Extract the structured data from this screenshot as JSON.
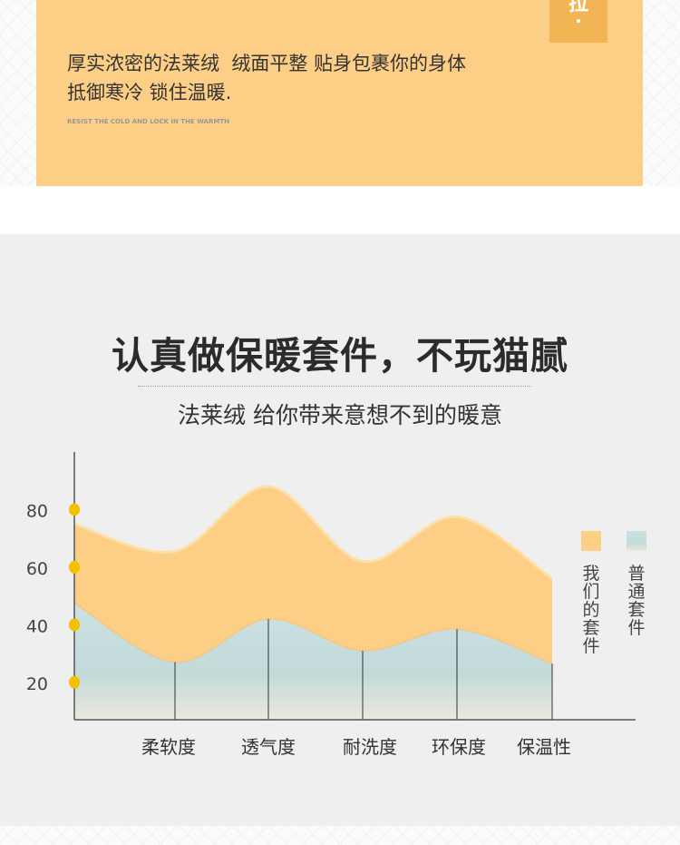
{
  "hero": {
    "badge_char": "拉",
    "description_line1": "厚实浓密的法莱绒  绒面平整 贴身包裹你的身体",
    "description_line2": "抵御寒冷 锁住温暖.",
    "english_tagline": "RESIST THE COLD AND LOCK IN THE WARMTH"
  },
  "section": {
    "title": "认真做保暖套件，不玩猫腻",
    "subtitle": "法莱绒 给你带来意想不到的暖意"
  },
  "chart_data": {
    "type": "area",
    "categories": [
      "",
      "柔软度",
      "透气度",
      "耐洗度",
      "环保度",
      "保温性"
    ],
    "y_ticks": [
      20,
      40,
      60,
      80
    ],
    "ylim": [
      7,
      100
    ],
    "grid": false,
    "legend_placement": "right",
    "series": [
      {
        "name": "我们的套件",
        "values": [
          75,
          65.5,
          88,
          62,
          77.5,
          56
        ],
        "color": "#fdce86"
      },
      {
        "name": "普通套件",
        "values": [
          47.5,
          27,
          42,
          31,
          38.5,
          26.5
        ],
        "color": "#c3dcdc"
      }
    ],
    "tick_marker_color": "#f5c000"
  }
}
